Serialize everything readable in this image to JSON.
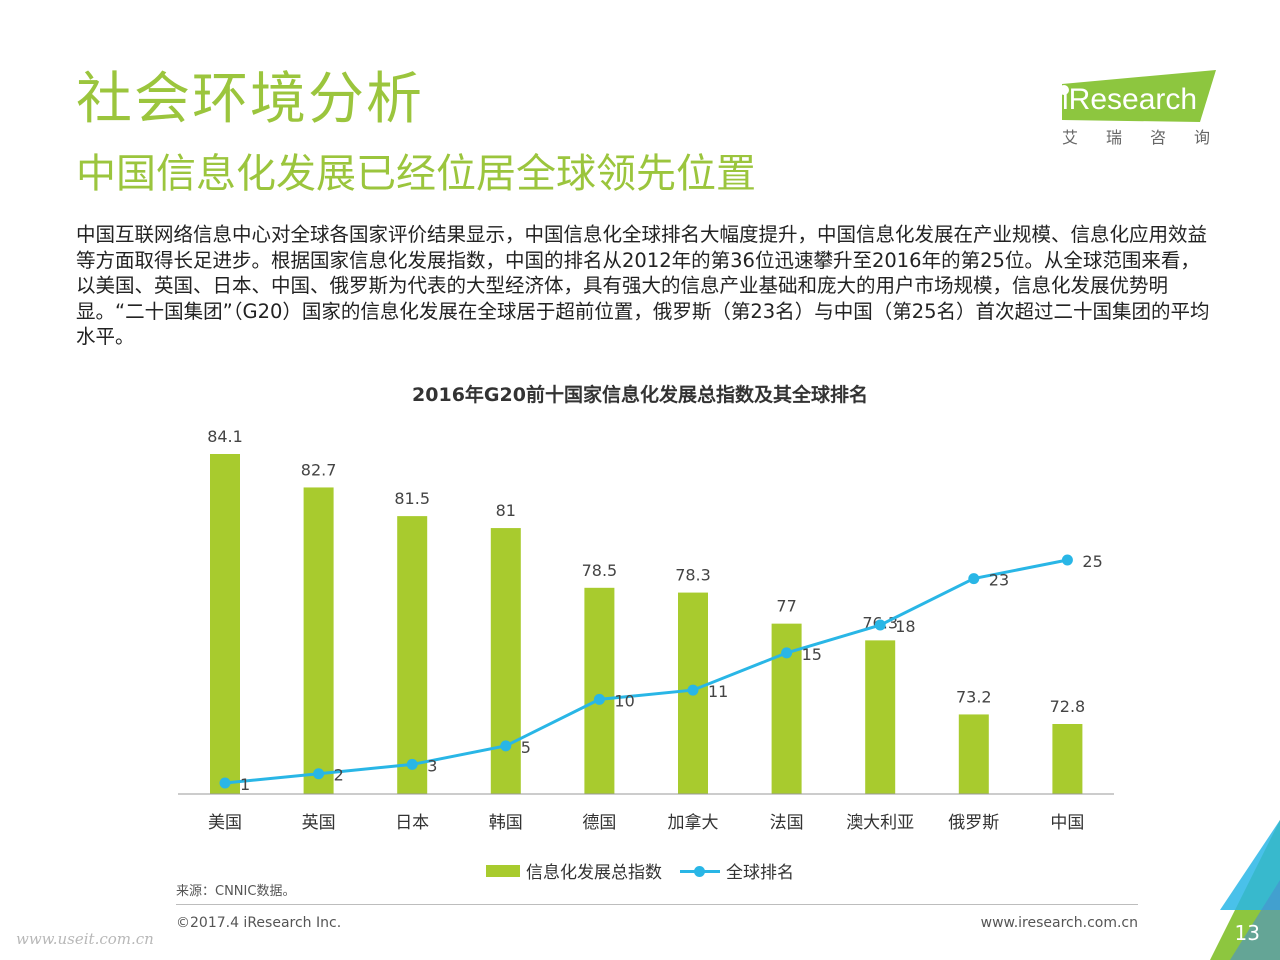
{
  "header": {
    "title": "社会环境分析",
    "subtitle": "中国信息化发展已经位居全球领先位置",
    "paragraph": "中国互联网络信息中心对全球各国家评价结果显示，中国信息化全球排名大幅度提升，中国信息化发展在产业规模、信息化应用效益等方面取得长足进步。根据国家信息化发展指数，中国的排名从2012年的第36位迅速攀升至2016年的第25位。从全球范围来看，以美国、英国、日本、中国、俄罗斯为代表的大型经济体，具有强大的信息产业基础和庞大的用户市场规模，信息化发展优势明显。“二十国集团”（G20）国家的信息化发展在全球居于超前位置，俄罗斯（第23名）与中国（第25名）首次超过二十国集团的平均水平。"
  },
  "logo": {
    "text": "iResearch",
    "subtext": "艾瑞咨询"
  },
  "chart_data": {
    "type": "bar",
    "title": "2016年G20前十国家信息化发展总指数及其全球排名",
    "categories": [
      "美国",
      "英国",
      "日本",
      "韩国",
      "德国",
      "加拿大",
      "法国",
      "澳大利亚",
      "俄罗斯",
      "中国"
    ],
    "series": [
      {
        "name": "信息化发展总指数",
        "type": "bar",
        "values": [
          84.1,
          82.7,
          81.5,
          81,
          78.5,
          78.3,
          77,
          76.3,
          73.2,
          72.8
        ]
      },
      {
        "name": "全球排名",
        "type": "line",
        "values": [
          1,
          2,
          3,
          5,
          10,
          11,
          15,
          18,
          23,
          25
        ]
      }
    ],
    "legend_position": "bottom",
    "grid": false,
    "colors": {
      "bar": "#a8cb2e",
      "line": "#29b6e6"
    }
  },
  "footer": {
    "source": "来源：CNNIC数据。",
    "copyright": "©2017.4 iResearch Inc.",
    "website": "www.iresearch.com.cn",
    "page": "13",
    "watermark": "www.useit.com.cn"
  }
}
